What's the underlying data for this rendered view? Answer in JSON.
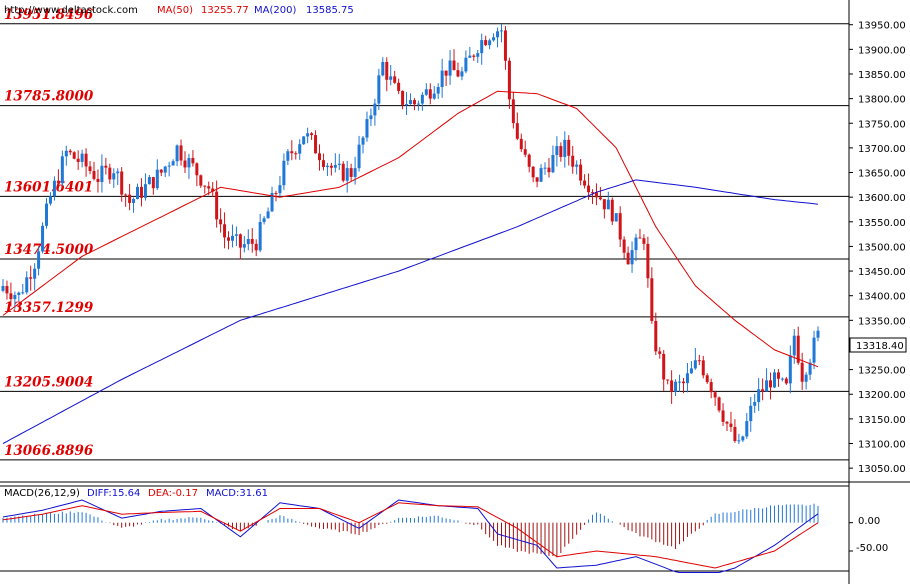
{
  "header": {
    "url": "http://www.deltastock.com",
    "ma50_label": "MA(50)",
    "ma50_value": "13255.77",
    "ma200_label": "MA(200)",
    "ma200_value": "13585.75"
  },
  "current_price": "13318.40",
  "levels": [
    "13951.8496",
    "13785.8000",
    "13601.6401",
    "13474.5000",
    "13357.1299",
    "13205.9004",
    "13066.8896"
  ],
  "colors": {
    "up_candle": "#1f77d6",
    "down_candle": "#d0151a",
    "ma50": "#e00000",
    "ma200": "#1010d0",
    "level_text": "#e00000",
    "grid": "#000000"
  },
  "macd": {
    "label": "MACD(26,12,9)",
    "diff_label": "DIFF:15.64",
    "dea_label": "DEA:-0.17",
    "macd_label": "MACD:31.61",
    "ticks": [
      "0.00",
      "-50.00"
    ]
  },
  "chart_data": {
    "type": "candlestick",
    "y_ticks": [
      13950,
      13900,
      13850,
      13800,
      13750,
      13700,
      13650,
      13600,
      13550,
      13500,
      13450,
      13400,
      13350,
      13300,
      13250,
      13200,
      13150,
      13100,
      13050
    ],
    "ylim": [
      13030,
      13990
    ],
    "grid": false,
    "horizontal_levels": [
      13951.8496,
      13785.8,
      13601.6401,
      13474.5,
      13357.1299,
      13205.9004,
      13066.8896
    ],
    "close_anchors": [
      [
        0,
        13420
      ],
      [
        4,
        13400
      ],
      [
        8,
        13470
      ],
      [
        12,
        13600
      ],
      [
        16,
        13690
      ],
      [
        20,
        13670
      ],
      [
        24,
        13640
      ],
      [
        28,
        13660
      ],
      [
        32,
        13590
      ],
      [
        36,
        13620
      ],
      [
        40,
        13650
      ],
      [
        44,
        13700
      ],
      [
        48,
        13660
      ],
      [
        52,
        13620
      ],
      [
        56,
        13520
      ],
      [
        60,
        13500
      ],
      [
        64,
        13510
      ],
      [
        68,
        13590
      ],
      [
        72,
        13680
      ],
      [
        76,
        13730
      ],
      [
        80,
        13690
      ],
      [
        84,
        13650
      ],
      [
        88,
        13650
      ],
      [
        92,
        13740
      ],
      [
        96,
        13870
      ],
      [
        100,
        13800
      ],
      [
        104,
        13790
      ],
      [
        108,
        13820
      ],
      [
        112,
        13860
      ],
      [
        116,
        13850
      ],
      [
        120,
        13910
      ],
      [
        124,
        13940
      ],
      [
        126,
        13940
      ],
      [
        128,
        13800
      ],
      [
        130,
        13720
      ],
      [
        134,
        13630
      ],
      [
        138,
        13670
      ],
      [
        142,
        13700
      ],
      [
        146,
        13650
      ],
      [
        150,
        13610
      ],
      [
        154,
        13570
      ],
      [
        158,
        13480
      ],
      [
        162,
        13520
      ],
      [
        164,
        13330
      ],
      [
        168,
        13210
      ],
      [
        172,
        13220
      ],
      [
        176,
        13270
      ],
      [
        180,
        13200
      ],
      [
        184,
        13120
      ],
      [
        186,
        13090
      ],
      [
        190,
        13190
      ],
      [
        194,
        13230
      ],
      [
        198,
        13210
      ],
      [
        200,
        13320
      ],
      [
        202,
        13240
      ],
      [
        206,
        13318.4
      ]
    ],
    "ma50": [
      [
        0,
        13360
      ],
      [
        20,
        13480
      ],
      [
        40,
        13560
      ],
      [
        55,
        13620
      ],
      [
        70,
        13600
      ],
      [
        85,
        13620
      ],
      [
        100,
        13680
      ],
      [
        115,
        13770
      ],
      [
        125,
        13815
      ],
      [
        135,
        13810
      ],
      [
        145,
        13780
      ],
      [
        155,
        13700
      ],
      [
        165,
        13540
      ],
      [
        175,
        13420
      ],
      [
        185,
        13350
      ],
      [
        195,
        13290
      ],
      [
        206,
        13255.77
      ]
    ],
    "ma200": [
      [
        0,
        13100
      ],
      [
        30,
        13230
      ],
      [
        60,
        13350
      ],
      [
        80,
        13400
      ],
      [
        100,
        13450
      ],
      [
        130,
        13540
      ],
      [
        150,
        13610
      ],
      [
        160,
        13635
      ],
      [
        175,
        13620
      ],
      [
        195,
        13595
      ],
      [
        206,
        13585.75
      ]
    ],
    "macd": {
      "ylim": [
        -80,
        40
      ],
      "diff": [
        [
          0,
          10
        ],
        [
          10,
          22
        ],
        [
          20,
          40
        ],
        [
          30,
          8
        ],
        [
          40,
          20
        ],
        [
          50,
          25
        ],
        [
          60,
          -25
        ],
        [
          70,
          35
        ],
        [
          80,
          25
        ],
        [
          90,
          -10
        ],
        [
          100,
          40
        ],
        [
          110,
          30
        ],
        [
          120,
          25
        ],
        [
          125,
          -20
        ],
        [
          135,
          -40
        ],
        [
          140,
          -80
        ],
        [
          150,
          -75
        ],
        [
          160,
          -60
        ],
        [
          175,
          -100
        ],
        [
          185,
          -80
        ],
        [
          195,
          -40
        ],
        [
          206,
          15.64
        ]
      ],
      "dea": [
        [
          0,
          5
        ],
        [
          10,
          15
        ],
        [
          20,
          30
        ],
        [
          30,
          15
        ],
        [
          40,
          18
        ],
        [
          50,
          20
        ],
        [
          60,
          -15
        ],
        [
          70,
          25
        ],
        [
          80,
          25
        ],
        [
          90,
          0
        ],
        [
          100,
          35
        ],
        [
          110,
          30
        ],
        [
          120,
          28
        ],
        [
          130,
          -10
        ],
        [
          140,
          -60
        ],
        [
          150,
          -50
        ],
        [
          165,
          -60
        ],
        [
          180,
          -80
        ],
        [
          195,
          -50
        ],
        [
          206,
          -0.17
        ]
      ],
      "histogram": [
        [
          0,
          10
        ],
        [
          10,
          15
        ],
        [
          20,
          20
        ],
        [
          30,
          -10
        ],
        [
          40,
          5
        ],
        [
          50,
          10
        ],
        [
          60,
          -15
        ],
        [
          70,
          12
        ],
        [
          80,
          -10
        ],
        [
          90,
          -20
        ],
        [
          100,
          8
        ],
        [
          110,
          12
        ],
        [
          120,
          -5
        ],
        [
          125,
          -40
        ],
        [
          130,
          -50
        ],
        [
          140,
          -60
        ],
        [
          150,
          20
        ],
        [
          160,
          -20
        ],
        [
          170,
          -45
        ],
        [
          180,
          15
        ],
        [
          195,
          30
        ],
        [
          206,
          31.61
        ]
      ]
    }
  }
}
